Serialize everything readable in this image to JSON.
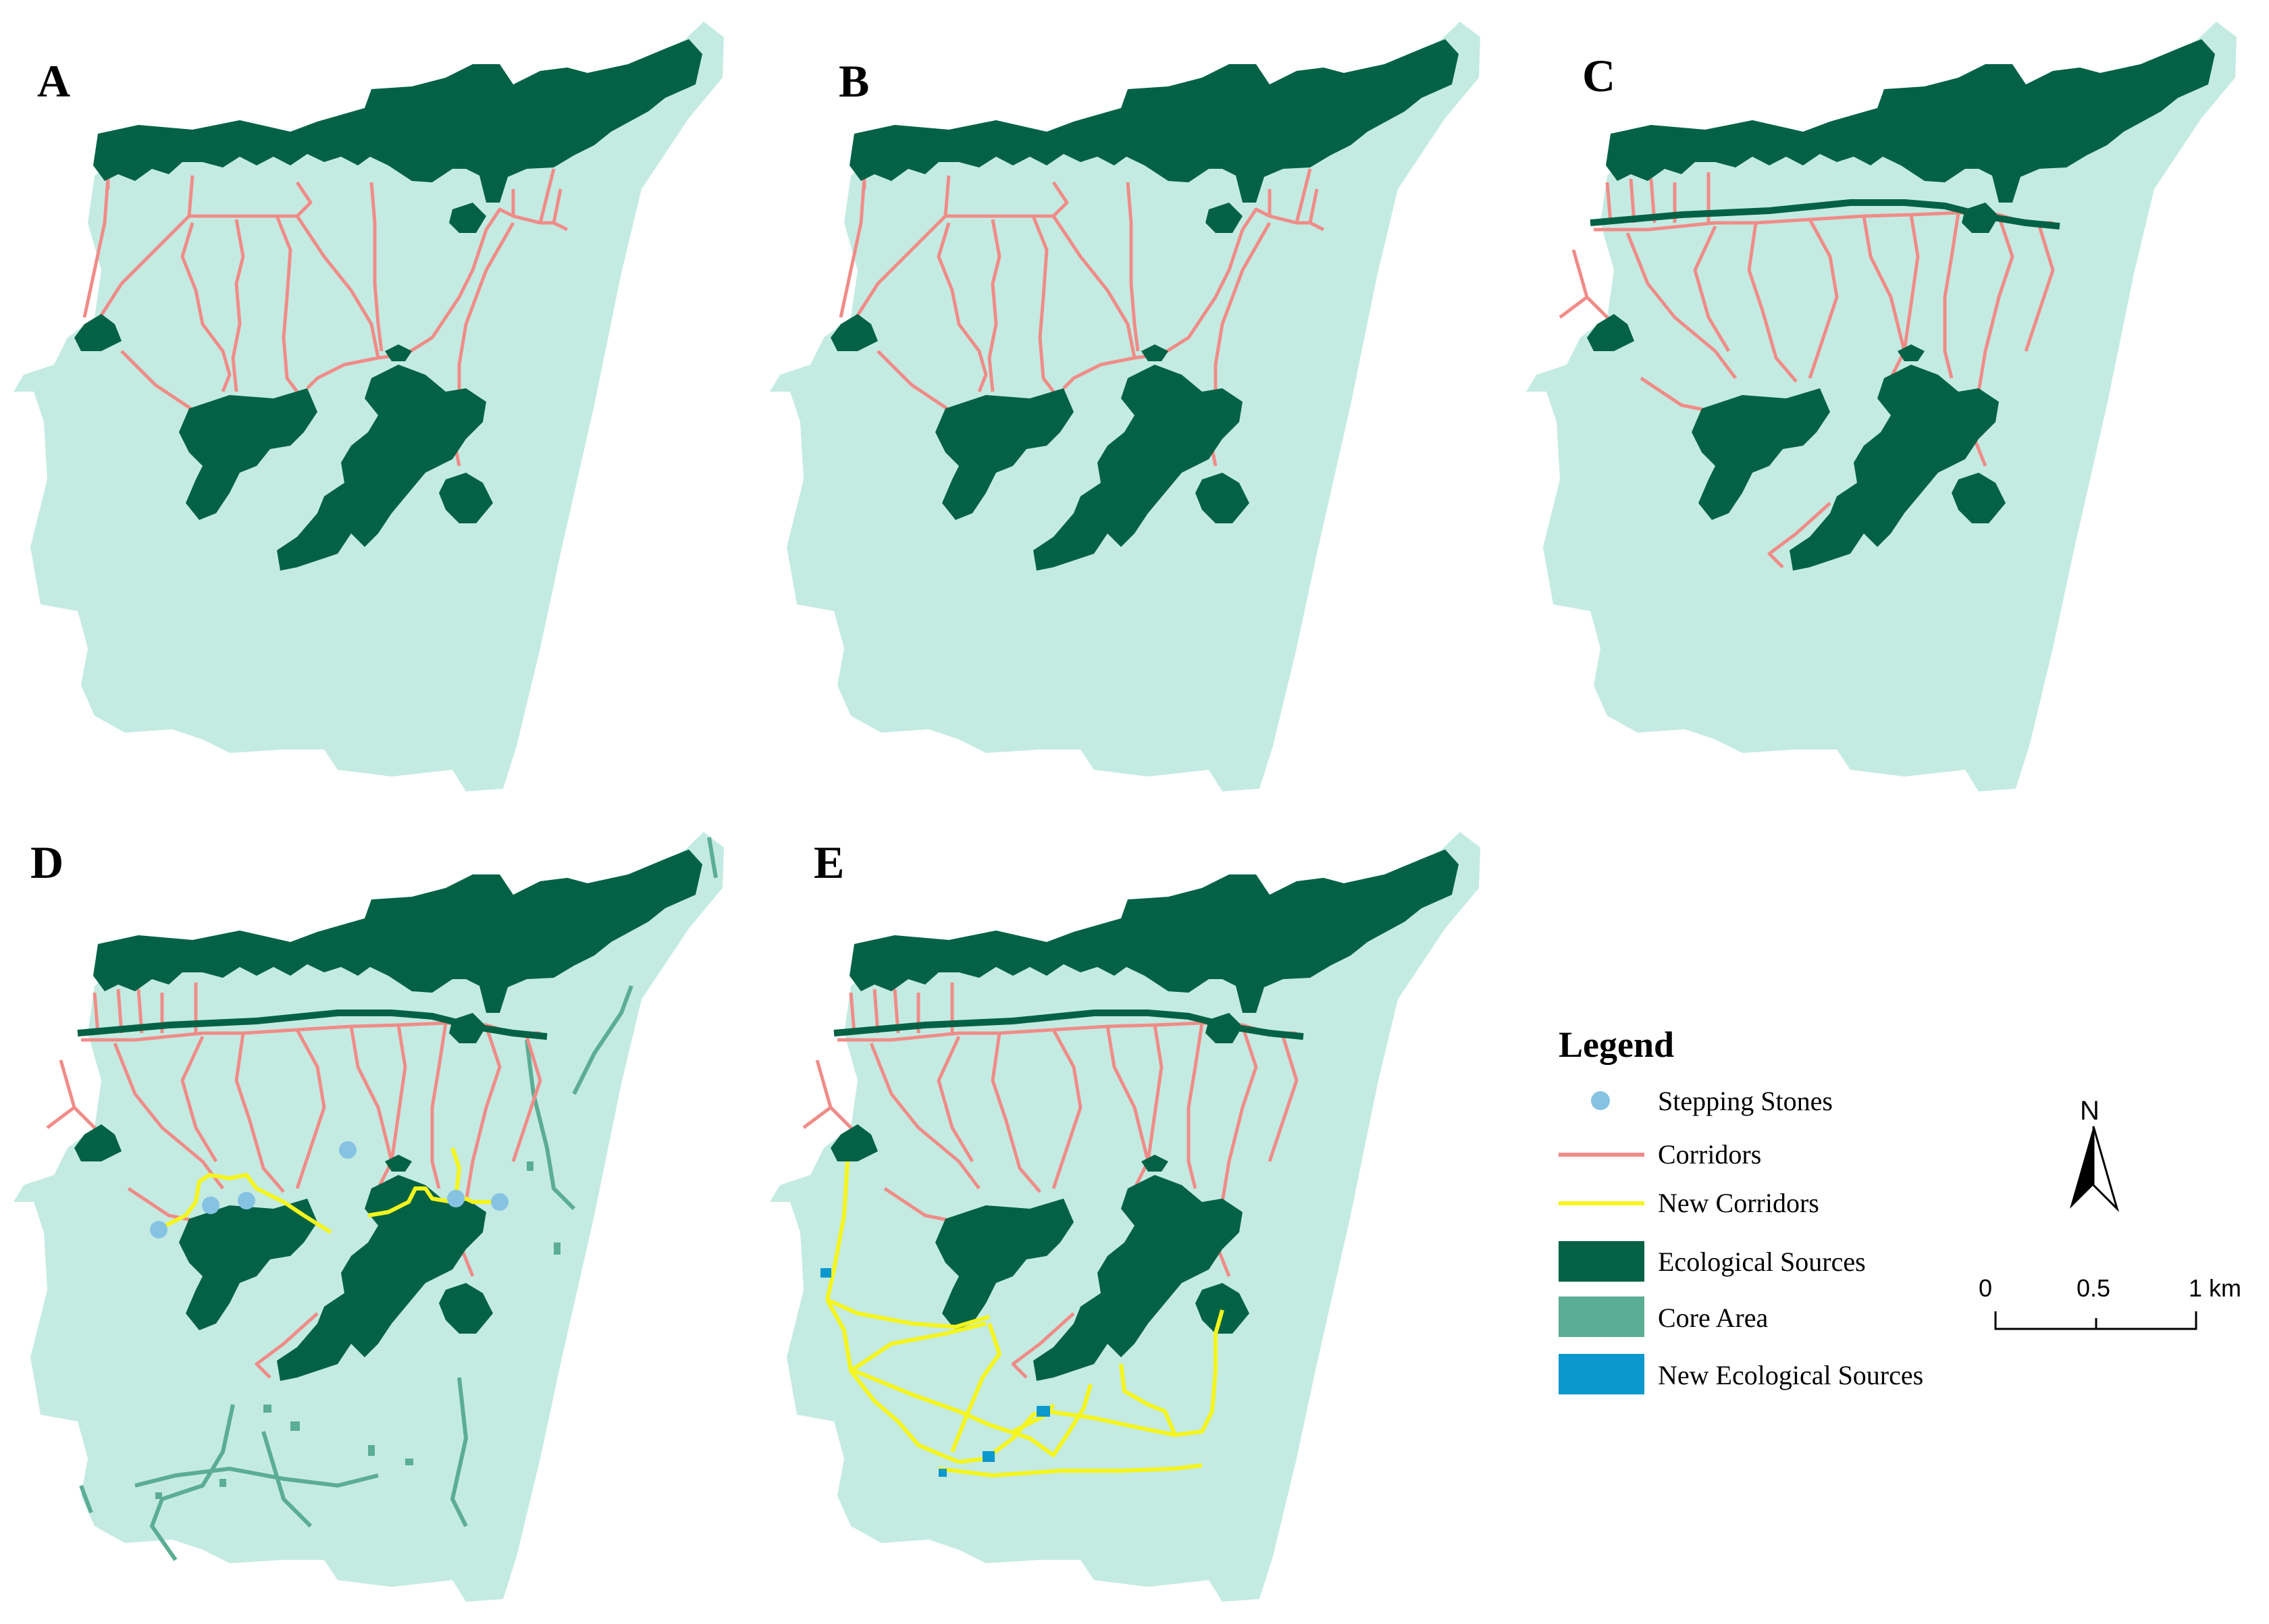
{
  "colors": {
    "study_area": "#c4ebe2",
    "ecological_sources": "#036245",
    "core_area": "#5bad93",
    "corridors": "#f08c88",
    "new_corridors": "#f5f51e",
    "stepping_stones": "#86c3e2",
    "new_ecological_sources": "#0a98cd"
  },
  "panels": [
    {
      "letter": "A",
      "variant": "base"
    },
    {
      "letter": "B",
      "variant": "base"
    },
    {
      "letter": "C",
      "variant": "belt"
    },
    {
      "letter": "D",
      "variant": "core"
    },
    {
      "letter": "E",
      "variant": "new"
    }
  ],
  "legend": {
    "title": "Legend",
    "items": [
      {
        "label": "Stepping Stones",
        "symbol": "circle",
        "color": "#86c3e2"
      },
      {
        "label": "Corridors",
        "symbol": "line",
        "color": "#f08c88"
      },
      {
        "label": "New Corridors",
        "symbol": "line",
        "color": "#f5f51e"
      },
      {
        "label": "Ecological Sources",
        "symbol": "rect",
        "color": "#036245"
      },
      {
        "label": "Core Area",
        "symbol": "rect",
        "color": "#5bad93"
      },
      {
        "label": "New Ecological Sources",
        "symbol": "rect",
        "color": "#0a98cd"
      }
    ]
  },
  "north_arrow": {
    "label": "N",
    "icon": "north-arrow-icon"
  },
  "scale_bar": {
    "ticks": [
      "0",
      "0.5",
      "1 km"
    ]
  }
}
